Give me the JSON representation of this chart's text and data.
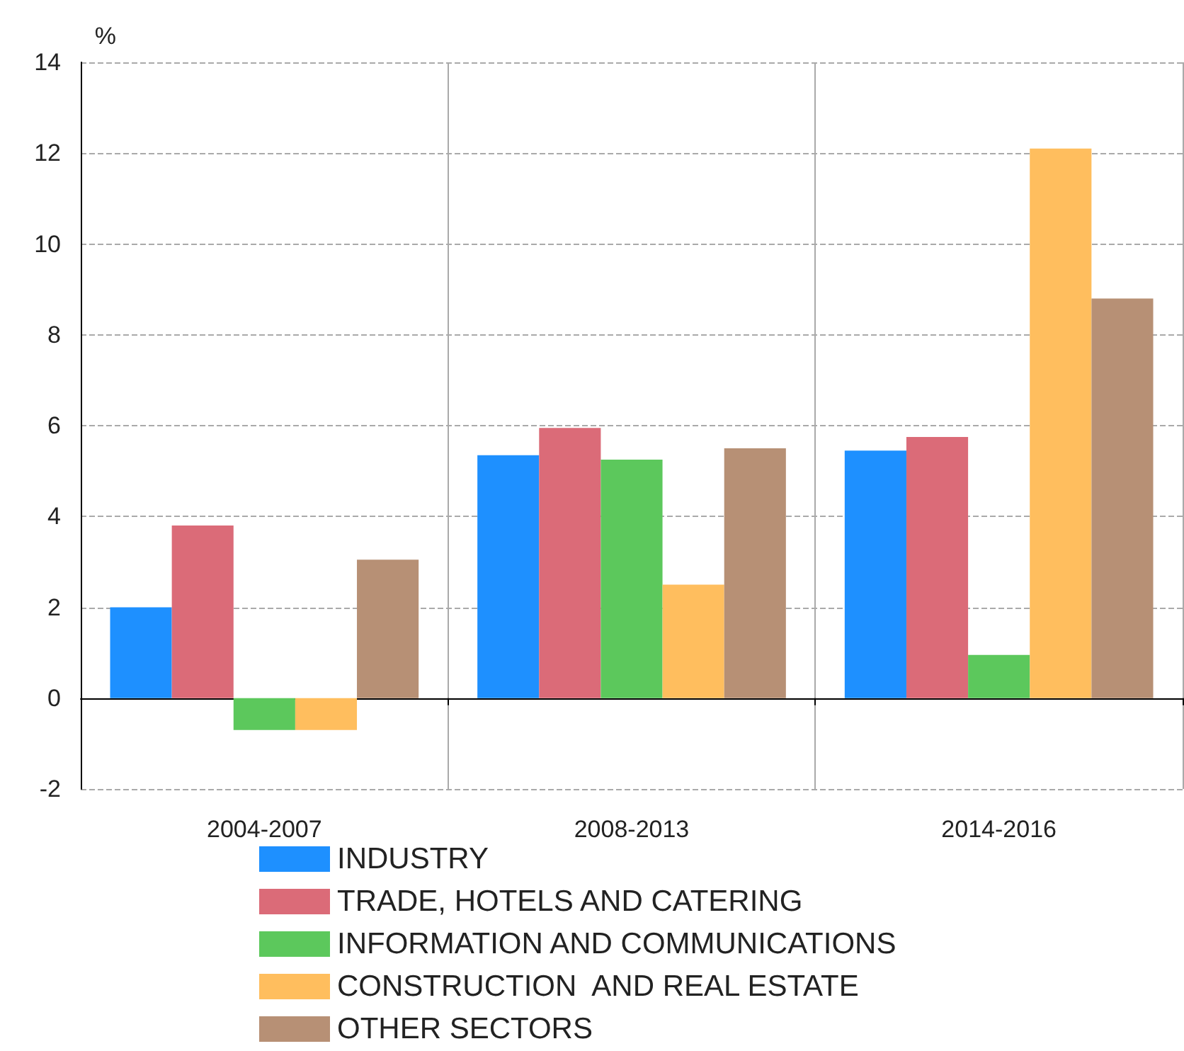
{
  "chart_data": {
    "type": "bar",
    "ylabel": "%",
    "categories": [
      "2004-2007",
      "2008-2013",
      "2014-2016"
    ],
    "series": [
      {
        "name": "INDUSTRY",
        "color": "#1e90ff",
        "values": [
          2.0,
          5.35,
          5.45
        ]
      },
      {
        "name": "TRADE, HOTELS AND CATERING",
        "color": "#db6b78",
        "values": [
          3.8,
          5.95,
          5.75
        ]
      },
      {
        "name": "INFORMATION AND COMMUNICATIONS",
        "color": "#5cc85c",
        "values": [
          -0.7,
          5.25,
          0.95
        ]
      },
      {
        "name": "CONSTRUCTION  AND REAL ESTATE",
        "color": "#ffbe5e",
        "values": [
          -0.7,
          2.5,
          12.1
        ]
      },
      {
        "name": "OTHER SECTORS",
        "color": "#b79075",
        "values": [
          3.05,
          5.5,
          8.8
        ]
      }
    ],
    "ylim": [
      -2,
      14
    ],
    "yticks": [
      -2,
      0,
      2,
      4,
      6,
      8,
      10,
      12,
      14
    ],
    "grid": true,
    "legend": "bottom"
  }
}
